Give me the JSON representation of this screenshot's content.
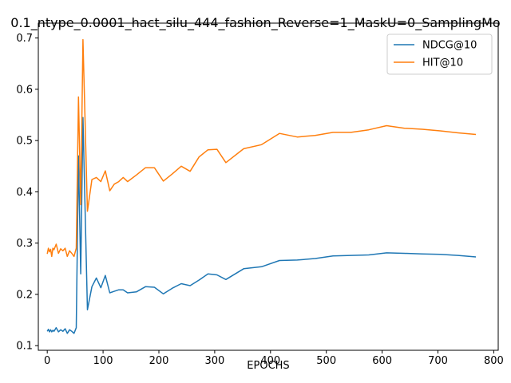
{
  "chart_data": {
    "type": "line",
    "title": "0.1_ntype_0.0001_hact_silu_444_fashion_Reverse=1_MaskU=0_SamplingMo",
    "xlabel": "EPOCHS",
    "ylabel": "",
    "xlim": [
      -16,
      808
    ],
    "ylim": [
      0.091,
      0.729
    ],
    "xticks": [
      0,
      100,
      200,
      300,
      400,
      500,
      600,
      700,
      800
    ],
    "yticks": [
      0.1,
      0.2,
      0.3,
      0.4,
      0.5,
      0.6,
      0.7
    ],
    "grid": false,
    "legend_position": "top-right",
    "series": [
      {
        "name": "NDCG@10",
        "color": "#1f77b4",
        "x": [
          0,
          2,
          4,
          6,
          8,
          10,
          12,
          16,
          20,
          24,
          28,
          32,
          36,
          40,
          44,
          48,
          52,
          56,
          60,
          64,
          72,
          80,
          88,
          96,
          104,
          112,
          120,
          128,
          136,
          144,
          160,
          176,
          192,
          208,
          224,
          240,
          256,
          272,
          288,
          304,
          320,
          352,
          384,
          416,
          448,
          480,
          512,
          544,
          576,
          608,
          640,
          672,
          704,
          736,
          768
        ],
        "y": [
          0.128,
          0.132,
          0.127,
          0.131,
          0.127,
          0.13,
          0.128,
          0.135,
          0.127,
          0.131,
          0.128,
          0.133,
          0.124,
          0.131,
          0.128,
          0.124,
          0.135,
          0.47,
          0.24,
          0.545,
          0.17,
          0.215,
          0.232,
          0.213,
          0.237,
          0.203,
          0.206,
          0.209,
          0.209,
          0.203,
          0.205,
          0.215,
          0.214,
          0.201,
          0.212,
          0.221,
          0.217,
          0.228,
          0.24,
          0.238,
          0.229,
          0.25,
          0.254,
          0.266,
          0.267,
          0.27,
          0.275,
          0.276,
          0.277,
          0.281,
          0.28,
          0.279,
          0.278,
          0.276,
          0.273
        ]
      },
      {
        "name": "HIT@10",
        "color": "#ff7f0e",
        "x": [
          0,
          2,
          4,
          6,
          8,
          10,
          12,
          16,
          20,
          24,
          28,
          32,
          36,
          40,
          44,
          48,
          52,
          56,
          60,
          64,
          72,
          80,
          88,
          96,
          104,
          112,
          120,
          128,
          136,
          144,
          160,
          176,
          192,
          208,
          224,
          240,
          256,
          272,
          288,
          304,
          320,
          352,
          384,
          416,
          448,
          480,
          512,
          544,
          576,
          608,
          640,
          672,
          704,
          736,
          768
        ],
        "y": [
          0.279,
          0.29,
          0.283,
          0.288,
          0.274,
          0.29,
          0.287,
          0.298,
          0.28,
          0.289,
          0.285,
          0.29,
          0.274,
          0.285,
          0.28,
          0.274,
          0.29,
          0.585,
          0.375,
          0.697,
          0.362,
          0.424,
          0.428,
          0.42,
          0.441,
          0.402,
          0.415,
          0.42,
          0.428,
          0.42,
          0.433,
          0.447,
          0.447,
          0.421,
          0.435,
          0.45,
          0.44,
          0.468,
          0.482,
          0.483,
          0.457,
          0.484,
          0.492,
          0.514,
          0.507,
          0.51,
          0.516,
          0.516,
          0.521,
          0.529,
          0.524,
          0.522,
          0.519,
          0.515,
          0.512
        ]
      }
    ]
  }
}
